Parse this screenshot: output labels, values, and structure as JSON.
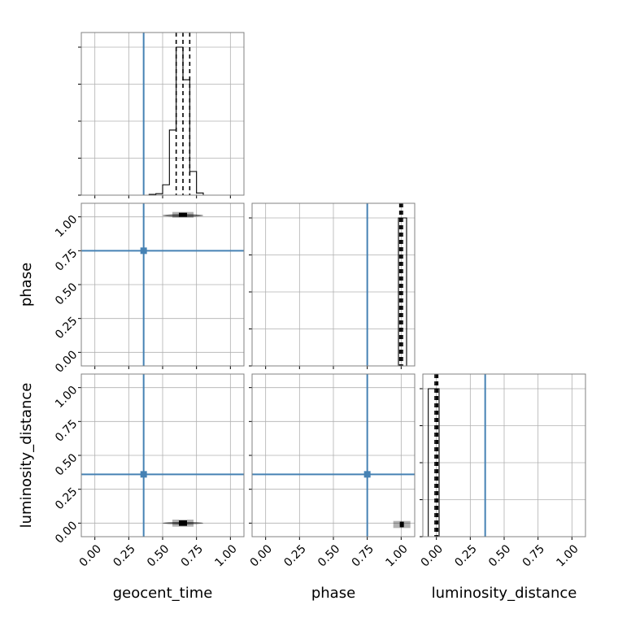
{
  "chart_data": {
    "type": "corner",
    "parameters": [
      "geocent_time",
      "phase",
      "luminosity_distance"
    ],
    "axis_range": [
      -0.1,
      1.1
    ],
    "tick_values": [
      0.0,
      0.25,
      0.5,
      0.75,
      1.0
    ],
    "tick_labels": [
      "0.00",
      "0.25",
      "0.50",
      "0.75",
      "1.00"
    ],
    "truths": [
      0.36,
      0.75,
      0.36
    ],
    "truth_color": "#4682b4",
    "grid": true,
    "histograms": [
      {
        "parameter": "geocent_time",
        "bin_edges": [
          0.35,
          0.4,
          0.45,
          0.5,
          0.55,
          0.6,
          0.65,
          0.7,
          0.75,
          0.8,
          0.85,
          0.9
        ],
        "counts": [
          0.0,
          0.005,
          0.01,
          0.07,
          0.44,
          1.0,
          0.78,
          0.16,
          0.015,
          0.0,
          0.0
        ],
        "quantiles": [
          0.6,
          0.65,
          0.7
        ]
      },
      {
        "parameter": "phase",
        "bin_edges": [
          0.98,
          1.04
        ],
        "counts": [
          1.0
        ],
        "quantiles": [
          0.99,
          1.0,
          1.01
        ]
      },
      {
        "parameter": "luminosity_distance",
        "bin_edges": [
          -0.06,
          0.02
        ],
        "counts": [
          1.0
        ],
        "quantiles": [
          -0.01,
          0.0,
          0.01
        ]
      }
    ],
    "densities_2d": [
      {
        "x": "geocent_time",
        "y": "phase",
        "center": [
          0.65,
          1.01
        ],
        "core": [
          0.62,
          0.68,
          1.0,
          1.03
        ],
        "spread": [
          0.5,
          0.8,
          1.0,
          1.02
        ]
      },
      {
        "x": "geocent_time",
        "y": "luminosity_distance",
        "center": [
          0.65,
          0.0
        ],
        "core": [
          0.62,
          0.68,
          -0.02,
          0.02
        ],
        "spread": [
          0.5,
          0.8,
          -0.005,
          0.005
        ]
      },
      {
        "x": "phase",
        "y": "luminosity_distance",
        "center": [
          1.0,
          -0.01
        ],
        "core": [
          0.99,
          1.02,
          -0.03,
          0.01
        ],
        "spread": [
          0.99,
          1.02,
          -0.03,
          0.01
        ]
      }
    ]
  }
}
